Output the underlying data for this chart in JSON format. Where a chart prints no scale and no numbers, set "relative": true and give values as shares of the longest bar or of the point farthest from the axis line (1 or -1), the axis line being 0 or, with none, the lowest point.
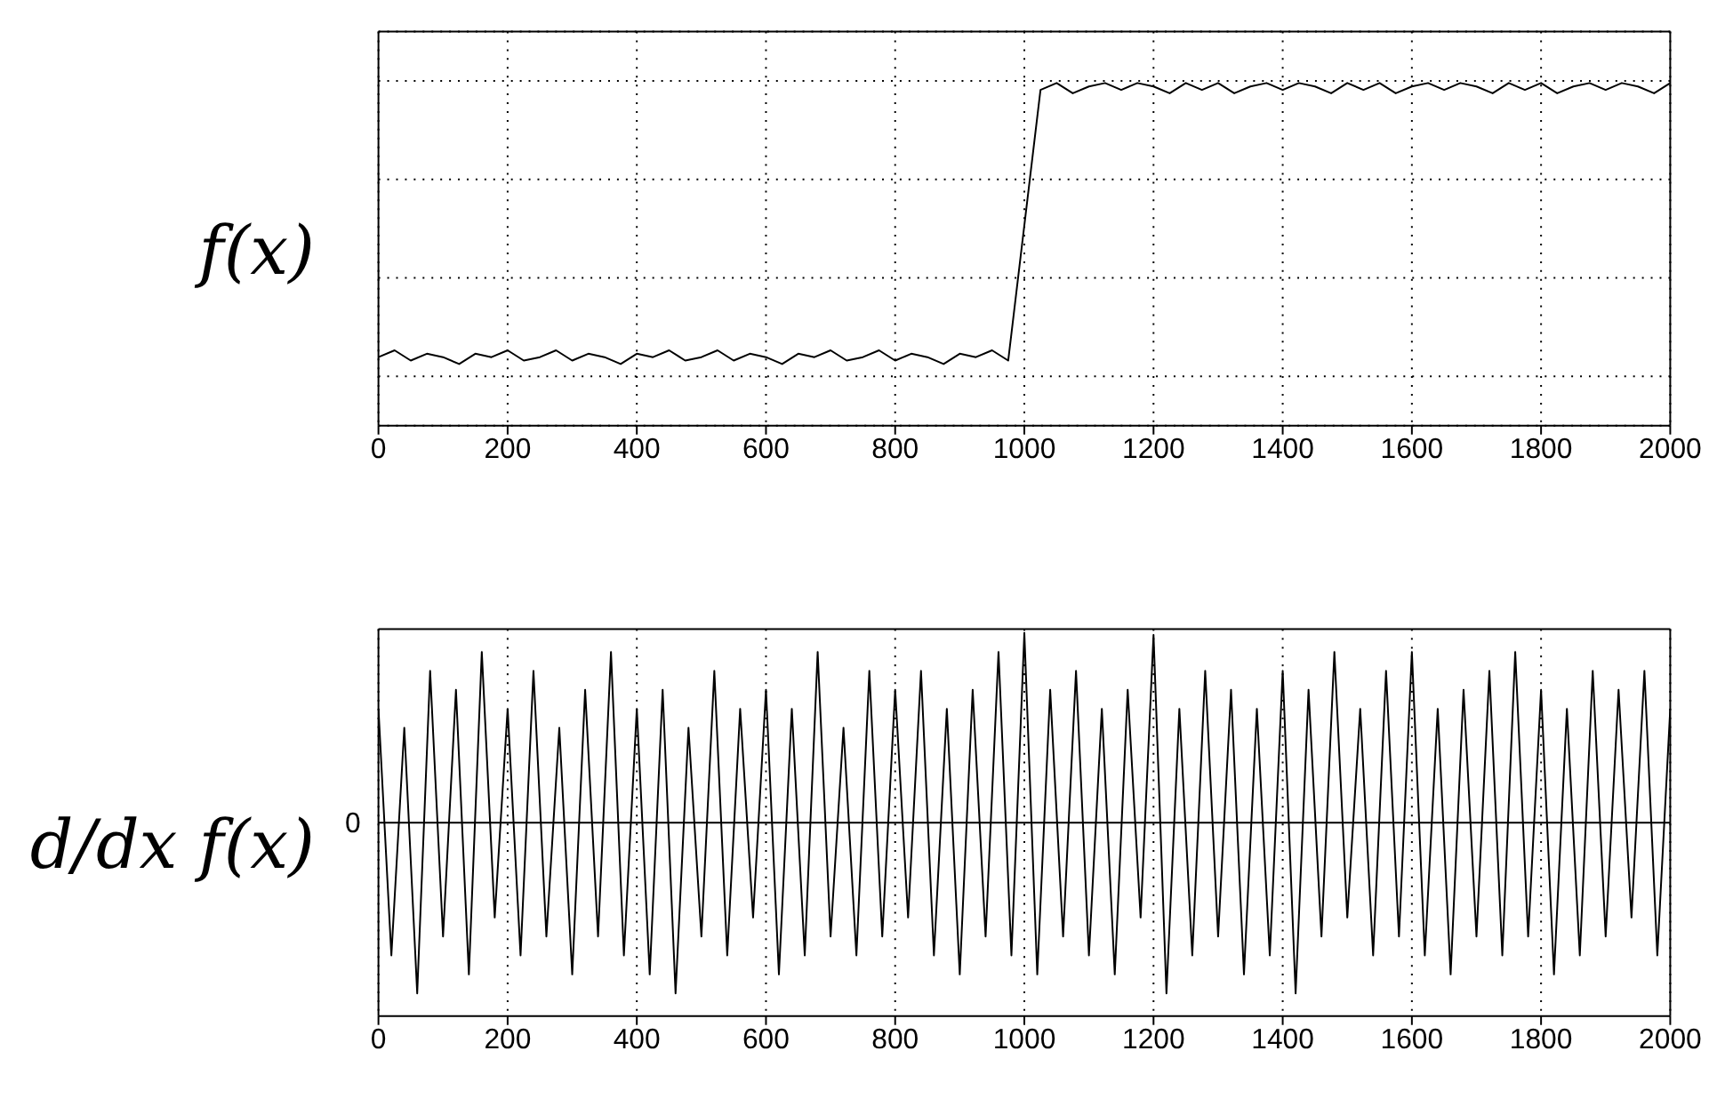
{
  "chart_data": [
    {
      "type": "line",
      "ylabel": "f(x)",
      "relative": true,
      "grid": true,
      "marker": "none",
      "line_style": "solid",
      "legend": false,
      "xlim": [
        0,
        2000
      ],
      "xticks": [
        0,
        200,
        400,
        600,
        800,
        1000,
        1200,
        1400,
        1600,
        1800,
        2000
      ],
      "series": [
        {
          "color": "#000000",
          "x": [
            0,
            25,
            50,
            75,
            100,
            125,
            150,
            175,
            200,
            225,
            250,
            275,
            300,
            325,
            350,
            375,
            400,
            425,
            450,
            475,
            500,
            525,
            550,
            575,
            600,
            625,
            650,
            675,
            700,
            725,
            750,
            775,
            800,
            825,
            850,
            875,
            900,
            925,
            950,
            975,
            1025,
            1050,
            1075,
            1100,
            1125,
            1150,
            1175,
            1200,
            1225,
            1250,
            1275,
            1300,
            1325,
            1350,
            1375,
            1400,
            1425,
            1450,
            1475,
            1500,
            1525,
            1550,
            1575,
            1600,
            1625,
            1650,
            1675,
            1700,
            1725,
            1750,
            1775,
            1800,
            1825,
            1850,
            1875,
            1900,
            1925,
            1950,
            1975,
            2000
          ],
          "values": [
            0.2,
            0.22,
            0.19,
            0.21,
            0.2,
            0.18,
            0.21,
            0.2,
            0.22,
            0.19,
            0.2,
            0.22,
            0.19,
            0.21,
            0.2,
            0.18,
            0.21,
            0.2,
            0.22,
            0.19,
            0.2,
            0.22,
            0.19,
            0.21,
            0.2,
            0.18,
            0.21,
            0.2,
            0.22,
            0.19,
            0.2,
            0.22,
            0.19,
            0.21,
            0.2,
            0.18,
            0.21,
            0.2,
            0.22,
            0.19,
            0.98,
            1.0,
            0.97,
            0.99,
            1.0,
            0.98,
            1.0,
            0.99,
            0.97,
            1.0,
            0.98,
            1.0,
            0.97,
            0.99,
            1.0,
            0.98,
            1.0,
            0.99,
            0.97,
            1.0,
            0.98,
            1.0,
            0.97,
            0.99,
            1.0,
            0.98,
            1.0,
            0.99,
            0.97,
            1.0,
            0.98,
            1.0,
            0.97,
            0.99,
            1.0,
            0.98,
            1.0,
            0.99,
            0.97,
            1.0
          ]
        }
      ]
    },
    {
      "type": "line",
      "ylabel": "d/dx f(x)",
      "relative": true,
      "grid": "x",
      "marker": "none",
      "line_style": "solid",
      "legend": false,
      "xlim": [
        0,
        2000
      ],
      "xticks": [
        0,
        200,
        400,
        600,
        800,
        1000,
        1200,
        1400,
        1600,
        1800,
        2000
      ],
      "annotations": [
        "0"
      ],
      "series": [
        {
          "color": "#000000",
          "x": [
            0,
            20,
            40,
            60,
            80,
            100,
            120,
            140,
            160,
            180,
            200,
            220,
            240,
            260,
            280,
            300,
            320,
            340,
            360,
            380,
            400,
            420,
            440,
            460,
            480,
            500,
            520,
            540,
            560,
            580,
            600,
            620,
            640,
            660,
            680,
            700,
            720,
            740,
            760,
            780,
            800,
            820,
            840,
            860,
            880,
            900,
            920,
            940,
            960,
            980,
            1000,
            1020,
            1040,
            1060,
            1080,
            1100,
            1120,
            1140,
            1160,
            1180,
            1200,
            1220,
            1240,
            1260,
            1280,
            1300,
            1320,
            1340,
            1360,
            1380,
            1400,
            1420,
            1440,
            1460,
            1480,
            1500,
            1520,
            1540,
            1560,
            1580,
            1600,
            1620,
            1640,
            1660,
            1680,
            1700,
            1720,
            1740,
            1760,
            1780,
            1800,
            1820,
            1840,
            1860,
            1880,
            1900,
            1920,
            1940,
            1960,
            1980,
            2000
          ],
          "values": [
            0.6,
            -0.7,
            0.5,
            -0.9,
            0.8,
            -0.6,
            0.7,
            -0.8,
            0.9,
            -0.5,
            0.6,
            -0.7,
            0.8,
            -0.6,
            0.5,
            -0.8,
            0.7,
            -0.6,
            0.9,
            -0.7,
            0.6,
            -0.8,
            0.7,
            -0.9,
            0.5,
            -0.6,
            0.8,
            -0.7,
            0.6,
            -0.5,
            0.7,
            -0.8,
            0.6,
            -0.7,
            0.9,
            -0.6,
            0.5,
            -0.7,
            0.8,
            -0.6,
            0.7,
            -0.5,
            0.8,
            -0.7,
            0.6,
            -0.8,
            0.7,
            -0.6,
            0.9,
            -0.7,
            1.0,
            -0.8,
            0.7,
            -0.6,
            0.8,
            -0.7,
            0.6,
            -0.8,
            0.7,
            -0.5,
            0.99,
            -0.9,
            0.6,
            -0.7,
            0.8,
            -0.6,
            0.7,
            -0.8,
            0.6,
            -0.7,
            0.8,
            -0.9,
            0.7,
            -0.6,
            0.9,
            -0.5,
            0.6,
            -0.7,
            0.8,
            -0.6,
            0.9,
            -0.7,
            0.6,
            -0.8,
            0.7,
            -0.6,
            0.8,
            -0.7,
            0.9,
            -0.6,
            0.7,
            -0.8,
            0.6,
            -0.7,
            0.8,
            -0.6,
            0.7,
            -0.5,
            0.8,
            -0.7,
            0.6
          ]
        }
      ]
    }
  ]
}
